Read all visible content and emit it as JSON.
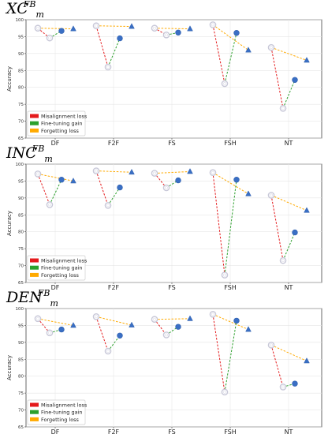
{
  "chart_data": [
    {
      "type": "line",
      "title": {
        "base": "XC",
        "sup": "FB",
        "sub": "m"
      },
      "ylabel": "Accuracy",
      "ylim": [
        65,
        100
      ],
      "yticks": [
        65,
        70,
        75,
        80,
        85,
        90,
        95,
        100
      ],
      "categories": [
        "DF",
        "F2F",
        "FS",
        "FSH",
        "NT"
      ],
      "legend": {
        "placement": "bottom-left",
        "entries": [
          "Misalignment loss",
          "Fine-tuning gain",
          "Forgetting loss"
        ],
        "colors": [
          "#e41a1c",
          "#2ca02c",
          "#ffaa00"
        ]
      },
      "series": {
        "start": [
          97.5,
          98.2,
          97.5,
          98.5,
          91.8
        ],
        "misaligned": [
          94.6,
          86.0,
          95.5,
          81.1,
          73.8
        ],
        "finetuned": [
          96.7,
          94.5,
          96.2,
          96.1,
          82.2
        ],
        "end": [
          97.3,
          98.0,
          97.3,
          91.0,
          88.0
        ]
      }
    },
    {
      "type": "line",
      "title": {
        "base": "INC",
        "sup": "FB",
        "sub": "m"
      },
      "ylabel": "Accuracy",
      "ylim": [
        65,
        100
      ],
      "yticks": [
        65,
        70,
        75,
        80,
        85,
        90,
        95,
        100
      ],
      "categories": [
        "DF",
        "F2F",
        "FS",
        "FSH",
        "NT"
      ],
      "legend": {
        "placement": "bottom-left",
        "entries": [
          "Misalignment loss",
          "Fine-tuning gain",
          "Forgetting loss"
        ],
        "colors": [
          "#e41a1c",
          "#2ca02c",
          "#ffaa00"
        ]
      },
      "series": {
        "start": [
          97.1,
          98.0,
          97.3,
          97.5,
          90.8
        ],
        "misaligned": [
          88.0,
          87.8,
          93.0,
          67.2,
          71.5
        ],
        "finetuned": [
          95.4,
          93.1,
          95.2,
          95.4,
          79.8
        ],
        "end": [
          95.0,
          97.6,
          97.8,
          91.2,
          86.3
        ]
      }
    },
    {
      "type": "line",
      "title": {
        "base": "DEN",
        "sup": "FB",
        "sub": "m"
      },
      "ylabel": "Accuracy",
      "ylim": [
        65,
        100
      ],
      "yticks": [
        65,
        70,
        75,
        80,
        85,
        90,
        95,
        100
      ],
      "categories": [
        "DF",
        "F2F",
        "FS",
        "FSH",
        "NT"
      ],
      "legend": {
        "placement": "bottom-left",
        "entries": [
          "Misalignment loss",
          "Fine-tuning gain",
          "Forgetting loss"
        ],
        "colors": [
          "#e41a1c",
          "#2ca02c",
          "#ffaa00"
        ]
      },
      "series": {
        "start": [
          97.0,
          97.6,
          96.8,
          98.3,
          89.2
        ],
        "misaligned": [
          92.8,
          87.4,
          92.2,
          75.3,
          76.8
        ],
        "finetuned": [
          93.8,
          92.0,
          94.6,
          96.4,
          77.8
        ],
        "end": [
          95.0,
          95.1,
          97.0,
          93.8,
          84.5
        ]
      }
    }
  ]
}
